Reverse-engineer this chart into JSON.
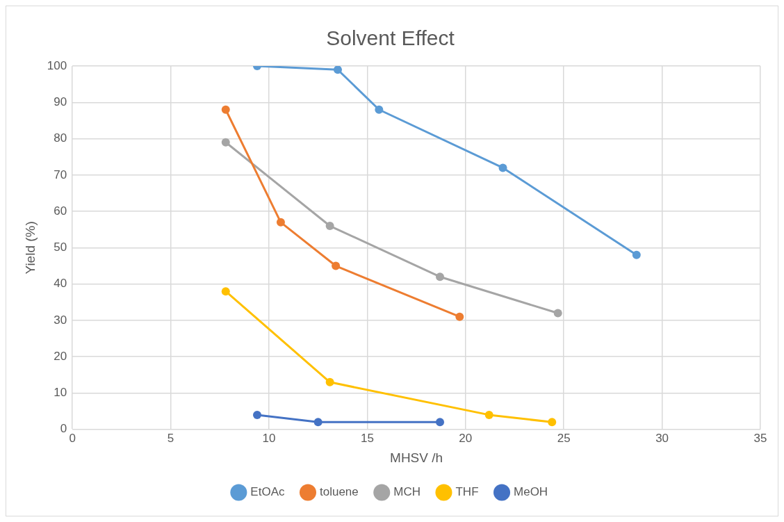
{
  "chart_data": {
    "type": "line",
    "title": "Solvent Effect",
    "xlabel": "MHSV /h",
    "ylabel": "Yield (%)",
    "xlim": [
      0,
      35
    ],
    "xticks": [
      0,
      5,
      10,
      15,
      20,
      25,
      30,
      35
    ],
    "ylim": [
      0,
      100
    ],
    "yticks": [
      0,
      10,
      20,
      30,
      40,
      50,
      60,
      70,
      80,
      90,
      100
    ],
    "grid": true,
    "legend": "bottom",
    "marker": "circle",
    "line_style": "solid",
    "series": [
      {
        "name": "EtOAc",
        "color": "#5b9bd5",
        "x": [
          9.4,
          13.5,
          15.6,
          21.9,
          28.7
        ],
        "values": [
          100,
          99,
          88,
          72,
          48
        ]
      },
      {
        "name": "toluene",
        "color": "#ed7d31",
        "x": [
          7.8,
          10.6,
          13.4,
          19.7
        ],
        "values": [
          88,
          57,
          45,
          31
        ]
      },
      {
        "name": "MCH",
        "color": "#a5a5a5",
        "x": [
          7.8,
          13.1,
          18.7,
          24.7
        ],
        "values": [
          79,
          56,
          42,
          32
        ]
      },
      {
        "name": "THF",
        "color": "#ffc000",
        "x": [
          7.8,
          13.1,
          21.2,
          24.4
        ],
        "values": [
          38,
          13,
          4,
          2
        ]
      },
      {
        "name": "MeOH",
        "color": "#4472c4",
        "x": [
          9.4,
          12.5,
          18.7
        ],
        "values": [
          4,
          2,
          2
        ]
      }
    ]
  }
}
